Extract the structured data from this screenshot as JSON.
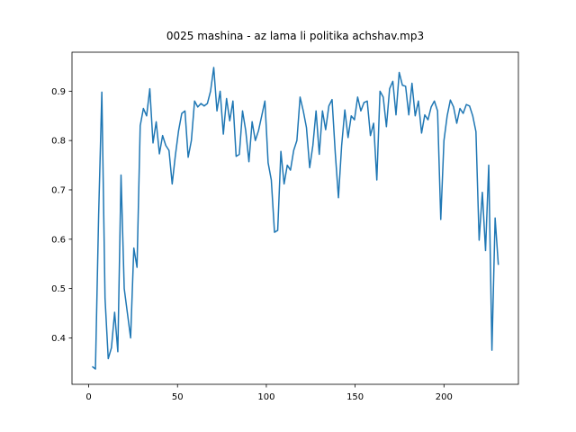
{
  "chart_data": {
    "type": "line",
    "title": "0025 mashina - az lama li politika achshav.mp3",
    "color": "#1f77b4",
    "xlim": [
      -9.4,
      241.9
    ],
    "ylim": [
      0.306,
      0.979
    ],
    "xticks": [
      0,
      50,
      100,
      150,
      200
    ],
    "yticks": [
      0.4,
      0.5,
      0.6,
      0.7,
      0.8,
      0.9
    ],
    "x": [
      2,
      3.8,
      5.6,
      7.4,
      9.2,
      11,
      12.8,
      14.6,
      16.4,
      18.2,
      20,
      21.8,
      23.6,
      25.4,
      27.2,
      29,
      30.8,
      32.6,
      34.4,
      36.2,
      38,
      39.8,
      41.6,
      43.4,
      45.2,
      47,
      48.8,
      50.6,
      52.4,
      54.2,
      56,
      57.8,
      59.6,
      61.4,
      63.2,
      65,
      66.8,
      68.6,
      70.4,
      72.2,
      74,
      75.8,
      77.6,
      79.4,
      81.2,
      83,
      84.8,
      86.6,
      88.4,
      90.2,
      92,
      93.8,
      95.6,
      97.4,
      99.2,
      101,
      102.8,
      104.6,
      106.4,
      108.2,
      110,
      111.8,
      113.6,
      115.4,
      117.2,
      119,
      120.8,
      122.6,
      124.4,
      126.2,
      128,
      129.8,
      131.6,
      133.4,
      135.2,
      137,
      138.8,
      140.6,
      142.4,
      144.2,
      146,
      147.8,
      149.6,
      151.4,
      153.2,
      155,
      156.8,
      158.6,
      160.4,
      162.2,
      164,
      165.8,
      167.6,
      169.4,
      171.2,
      173,
      174.8,
      176.6,
      178.4,
      180.2,
      182,
      183.8,
      185.6,
      187.4,
      189.2,
      191,
      192.8,
      194.6,
      196.4,
      198.2,
      200,
      201.8,
      203.6,
      205.4,
      207.2,
      209,
      210.8,
      212.6,
      214.4,
      216.2,
      218,
      219.8,
      221.6,
      223.4,
      225.2,
      227,
      228.8,
      230.6
    ],
    "values": [
      0.342,
      0.337,
      0.65,
      0.898,
      0.48,
      0.358,
      0.38,
      0.452,
      0.372,
      0.73,
      0.5,
      0.45,
      0.4,
      0.582,
      0.543,
      0.83,
      0.865,
      0.85,
      0.905,
      0.795,
      0.838,
      0.773,
      0.81,
      0.79,
      0.78,
      0.712,
      0.77,
      0.82,
      0.855,
      0.86,
      0.766,
      0.8,
      0.88,
      0.868,
      0.875,
      0.87,
      0.875,
      0.9,
      0.948,
      0.86,
      0.9,
      0.813,
      0.885,
      0.84,
      0.88,
      0.768,
      0.772,
      0.86,
      0.82,
      0.757,
      0.838,
      0.8,
      0.82,
      0.85,
      0.88,
      0.755,
      0.72,
      0.614,
      0.618,
      0.778,
      0.712,
      0.75,
      0.74,
      0.78,
      0.8,
      0.888,
      0.86,
      0.826,
      0.745,
      0.79,
      0.86,
      0.772,
      0.86,
      0.822,
      0.87,
      0.883,
      0.775,
      0.684,
      0.79,
      0.862,
      0.806,
      0.85,
      0.842,
      0.888,
      0.86,
      0.877,
      0.88,
      0.81,
      0.835,
      0.72,
      0.9,
      0.888,
      0.828,
      0.905,
      0.92,
      0.852,
      0.938,
      0.912,
      0.91,
      0.852,
      0.916,
      0.85,
      0.88,
      0.815,
      0.852,
      0.842,
      0.868,
      0.88,
      0.86,
      0.64,
      0.8,
      0.85,
      0.882,
      0.868,
      0.835,
      0.865,
      0.855,
      0.873,
      0.87,
      0.85,
      0.818,
      0.598,
      0.695,
      0.577,
      0.75,
      0.375,
      0.643,
      0.548
    ]
  }
}
